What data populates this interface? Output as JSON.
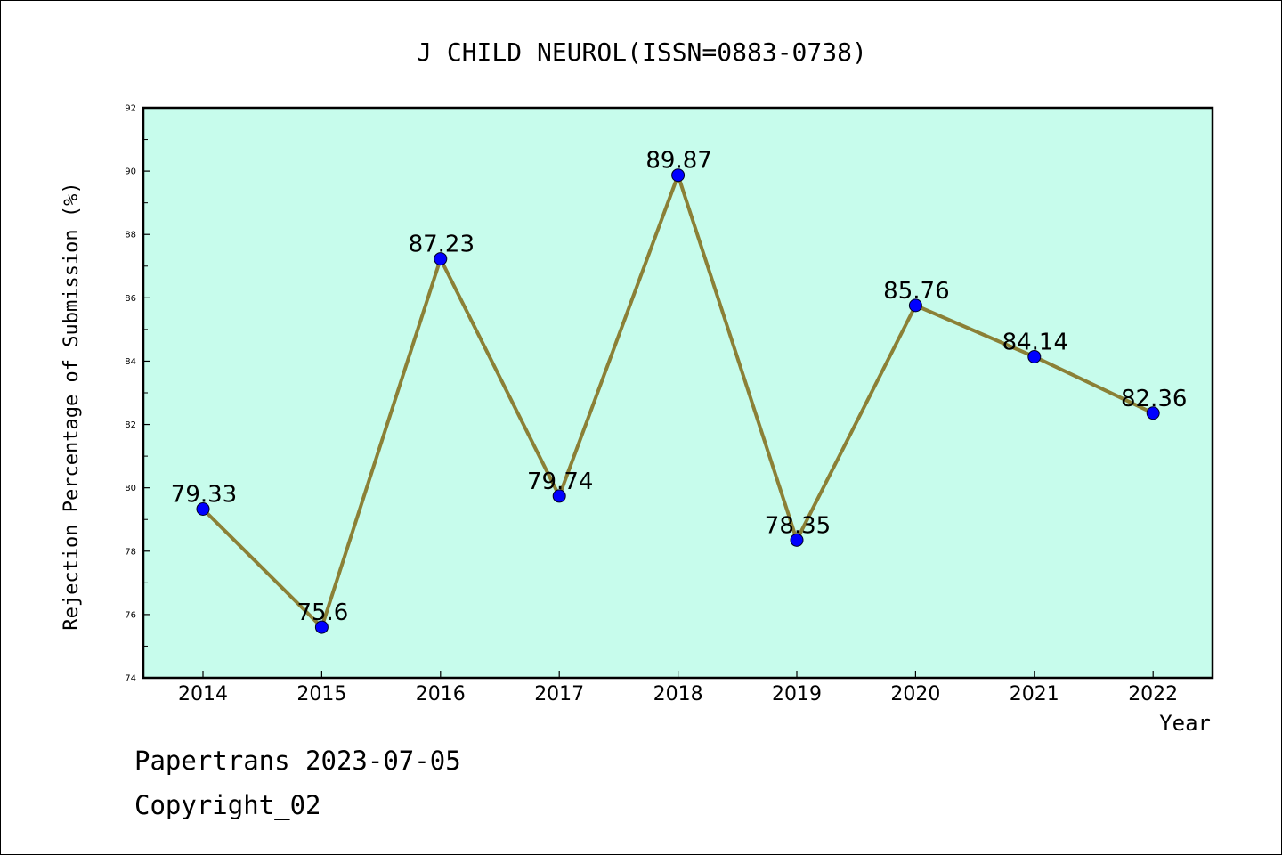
{
  "chart_data": {
    "type": "line",
    "title": "J CHILD NEUROL(ISSN=0883-0738)",
    "xlabel": "Year",
    "ylabel": "Rejection Percentage of Submission (%)",
    "categories": [
      "2014",
      "2015",
      "2016",
      "2017",
      "2018",
      "2019",
      "2020",
      "2021",
      "2022"
    ],
    "values": [
      79.33,
      75.6,
      87.23,
      79.74,
      89.87,
      78.35,
      85.76,
      84.14,
      82.36
    ],
    "data_labels": [
      "79.33",
      "75.6",
      "87.23",
      "79.74",
      "89.87",
      "78.35",
      "85.76",
      "84.14",
      "82.36"
    ],
    "ylim": [
      74,
      92
    ],
    "yticks": [
      "74",
      "76",
      "78",
      "80",
      "82",
      "84",
      "86",
      "88",
      "90",
      "92"
    ],
    "grid": false,
    "legend": "none",
    "colors": {
      "plot_background": "#c7fcec",
      "line": "#8b8036",
      "marker": "#0000ff"
    }
  },
  "footer": {
    "line1": "Papertrans 2023-07-05",
    "line2": "Copyright_02"
  }
}
